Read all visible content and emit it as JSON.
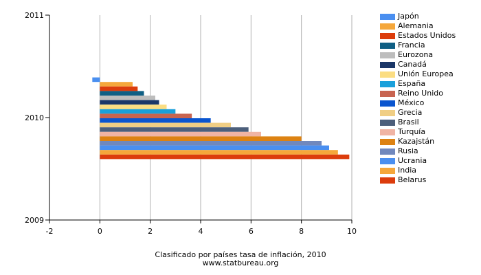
{
  "chart_data": {
    "type": "bar",
    "orientation": "horizontal",
    "title": "Clasificado por países tasa de inflación, 2010",
    "subtitle": "www.statbureau.org",
    "category": "2010",
    "xlim": [
      -2,
      10
    ],
    "ylim": [
      2009,
      2011
    ],
    "x_ticks": [
      "-2",
      "0",
      "2",
      "4",
      "6",
      "8",
      "10"
    ],
    "y_ticks": [
      "2011",
      "2010",
      "2009"
    ],
    "grid": true,
    "legend_position": "right",
    "series": [
      {
        "name": "Japón",
        "value": -0.3,
        "color": "#4a8ff0"
      },
      {
        "name": "Alemania",
        "value": 1.3,
        "color": "#f5a73b"
      },
      {
        "name": "Estados Unidos",
        "value": 1.5,
        "color": "#dc3c0c"
      },
      {
        "name": "Francia",
        "value": 1.75,
        "color": "#0f5f84"
      },
      {
        "name": "Eurozona",
        "value": 2.2,
        "color": "#bdbdbd"
      },
      {
        "name": "Canadá",
        "value": 2.35,
        "color": "#1b3768"
      },
      {
        "name": "Unión Europea",
        "value": 2.65,
        "color": "#fbdd82"
      },
      {
        "name": "España",
        "value": 3.0,
        "color": "#1aa0db"
      },
      {
        "name": "Reino Unido",
        "value": 3.65,
        "color": "#c86450"
      },
      {
        "name": "México",
        "value": 4.4,
        "color": "#0a55cf"
      },
      {
        "name": "Grecia",
        "value": 5.2,
        "color": "#f0ce84"
      },
      {
        "name": "Brasil",
        "value": 5.9,
        "color": "#4c5f7b"
      },
      {
        "name": "Turquía",
        "value": 6.4,
        "color": "#f0b4a4"
      },
      {
        "name": "Kazajstán",
        "value": 8.0,
        "color": "#dd8212"
      },
      {
        "name": "Rusia",
        "value": 8.8,
        "color": "#7088bd"
      },
      {
        "name": "Ucrania",
        "value": 9.1,
        "color": "#4a8ff0"
      },
      {
        "name": "India",
        "value": 9.45,
        "color": "#f5a73b"
      },
      {
        "name": "Belarus",
        "value": 9.9,
        "color": "#dc3c0c"
      }
    ]
  }
}
